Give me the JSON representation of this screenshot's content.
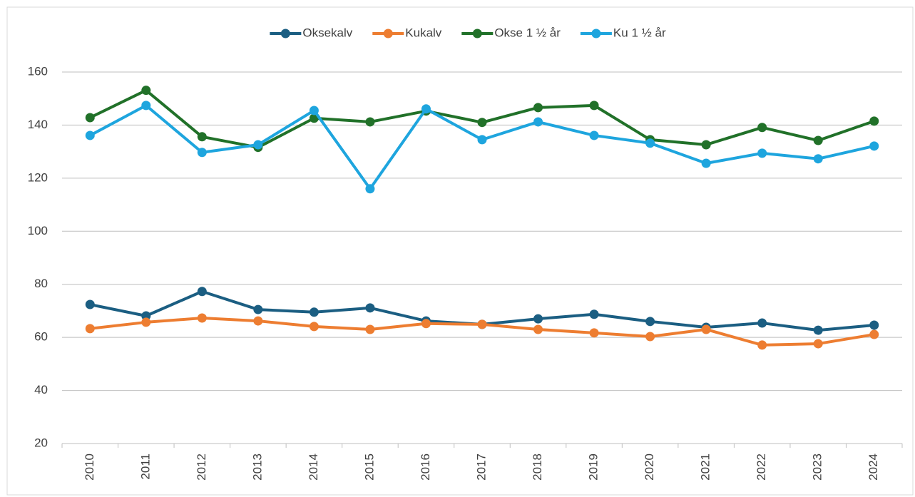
{
  "chart_data": {
    "type": "line",
    "categories": [
      "2010",
      "2011",
      "2012",
      "2013",
      "2014",
      "2015",
      "2016",
      "2017",
      "2018",
      "2019",
      "2020",
      "2021",
      "2022",
      "2023",
      "2024"
    ],
    "series": [
      {
        "name": "Oksekalv",
        "color": "#1b5e82",
        "values": [
          72.4,
          68.1,
          77.3,
          70.5,
          69.5,
          71.1,
          66.2,
          64.9,
          67.0,
          68.7,
          66.0,
          63.8,
          65.4,
          62.7,
          64.6
        ]
      },
      {
        "name": "Kukalv",
        "color": "#ed7d31",
        "values": [
          63.3,
          65.7,
          67.3,
          66.2,
          64.1,
          63.0,
          65.2,
          64.9,
          63.0,
          61.7,
          60.3,
          63.0,
          57.1,
          57.6,
          61.1
        ]
      },
      {
        "name": "Okse 1 ½ år",
        "color": "#217129",
        "values": [
          142.8,
          153.1,
          135.6,
          131.6,
          142.6,
          141.2,
          145.3,
          141.0,
          146.6,
          147.4,
          134.5,
          132.6,
          139.1,
          134.2,
          141.5
        ]
      },
      {
        "name": "Ku 1 ½ år",
        "color": "#1ea5de",
        "values": [
          136.1,
          147.4,
          129.7,
          132.6,
          145.5,
          116.0,
          146.1,
          134.5,
          141.2,
          136.1,
          133.2,
          125.6,
          129.4,
          127.3,
          132.1
        ]
      }
    ],
    "ylim": [
      20,
      160
    ],
    "yticks": [
      20,
      40,
      60,
      80,
      100,
      120,
      140,
      160
    ],
    "grid": true,
    "legend": "top"
  }
}
